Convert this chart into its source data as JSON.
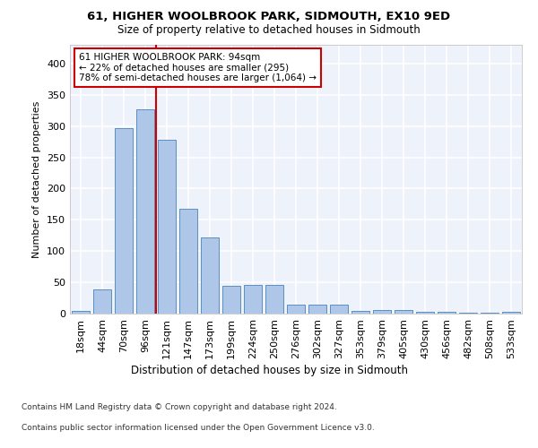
{
  "title1": "61, HIGHER WOOLBROOK PARK, SIDMOUTH, EX10 9ED",
  "title2": "Size of property relative to detached houses in Sidmouth",
  "xlabel": "Distribution of detached houses by size in Sidmouth",
  "ylabel": "Number of detached properties",
  "footnote1": "Contains HM Land Registry data © Crown copyright and database right 2024.",
  "footnote2": "Contains public sector information licensed under the Open Government Licence v3.0.",
  "bar_labels": [
    "18sqm",
    "44sqm",
    "70sqm",
    "96sqm",
    "121sqm",
    "147sqm",
    "173sqm",
    "199sqm",
    "224sqm",
    "250sqm",
    "276sqm",
    "302sqm",
    "327sqm",
    "353sqm",
    "379sqm",
    "405sqm",
    "430sqm",
    "456sqm",
    "482sqm",
    "508sqm",
    "533sqm"
  ],
  "bar_values": [
    4,
    38,
    297,
    327,
    278,
    167,
    122,
    44,
    46,
    46,
    14,
    15,
    15,
    5,
    6,
    6,
    3,
    3,
    1,
    1,
    3
  ],
  "bar_color": "#aec6e8",
  "bar_edge_color": "#5a8fc2",
  "vline_x": 3.5,
  "vline_color": "#cc0000",
  "annotation_text": "61 HIGHER WOOLBROOK PARK: 94sqm\n← 22% of detached houses are smaller (295)\n78% of semi-detached houses are larger (1,064) →",
  "annotation_box_color": "#cc0000",
  "ylim": [
    0,
    430
  ],
  "background_color": "#eef2fb",
  "grid_color": "#ffffff",
  "yticks": [
    0,
    50,
    100,
    150,
    200,
    250,
    300,
    350,
    400
  ]
}
